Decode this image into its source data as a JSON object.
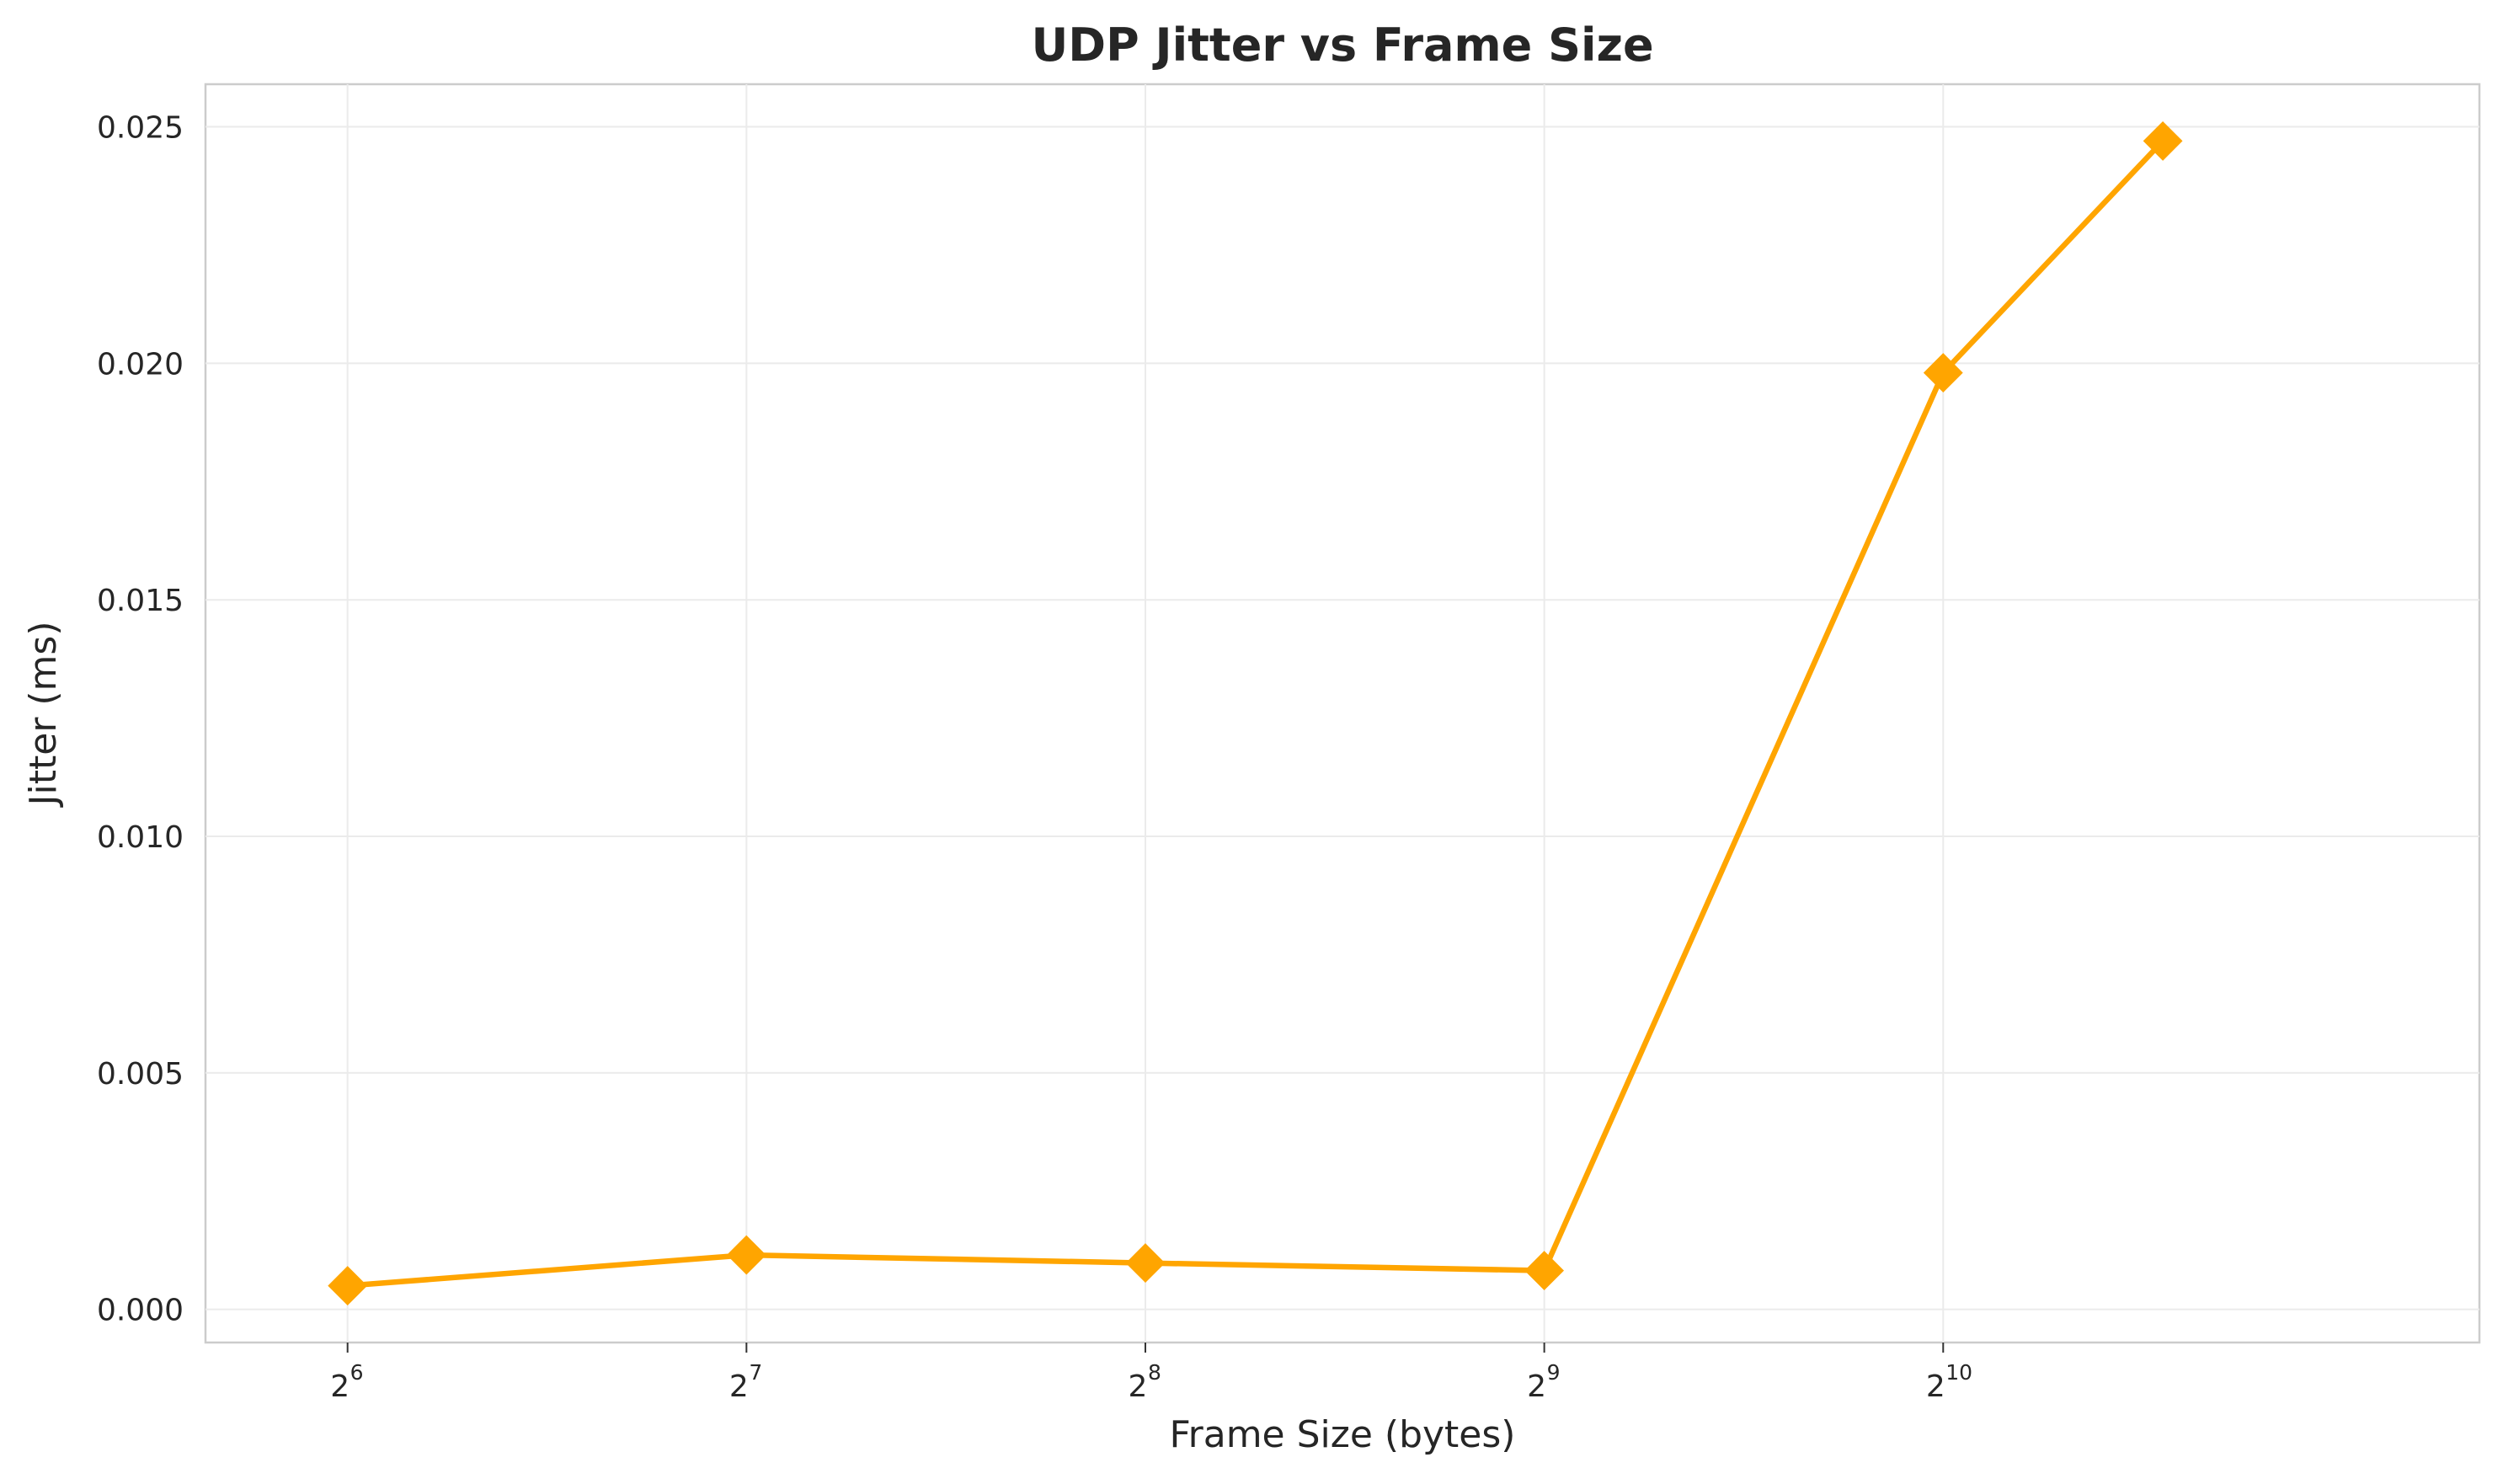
{
  "chart_data": {
    "type": "line",
    "title": "UDP Jitter vs Frame Size",
    "xlabel": "Frame Size (bytes)",
    "ylabel": "Jitter (ms)",
    "x_scale": "log2",
    "x_ticks": [
      {
        "base": "2",
        "exp": "6",
        "value": 64
      },
      {
        "base": "2",
        "exp": "7",
        "value": 128
      },
      {
        "base": "2",
        "exp": "8",
        "value": 256
      },
      {
        "base": "2",
        "exp": "9",
        "value": 512
      },
      {
        "base": "2",
        "exp": "10",
        "value": 1024
      }
    ],
    "y_ticks": [
      "0.000",
      "0.005",
      "0.010",
      "0.015",
      "0.020",
      "0.025"
    ],
    "ylim": [
      -0.0007,
      0.0259
    ],
    "xlim": [
      50,
      2600
    ],
    "grid": true,
    "series": [
      {
        "color": "#ffa500",
        "marker": "diamond",
        "x": [
          64,
          128,
          256,
          512,
          1024,
          1500
        ],
        "y": [
          0.0005,
          0.00115,
          0.00098,
          0.00082,
          0.0198,
          0.0247
        ]
      }
    ]
  }
}
